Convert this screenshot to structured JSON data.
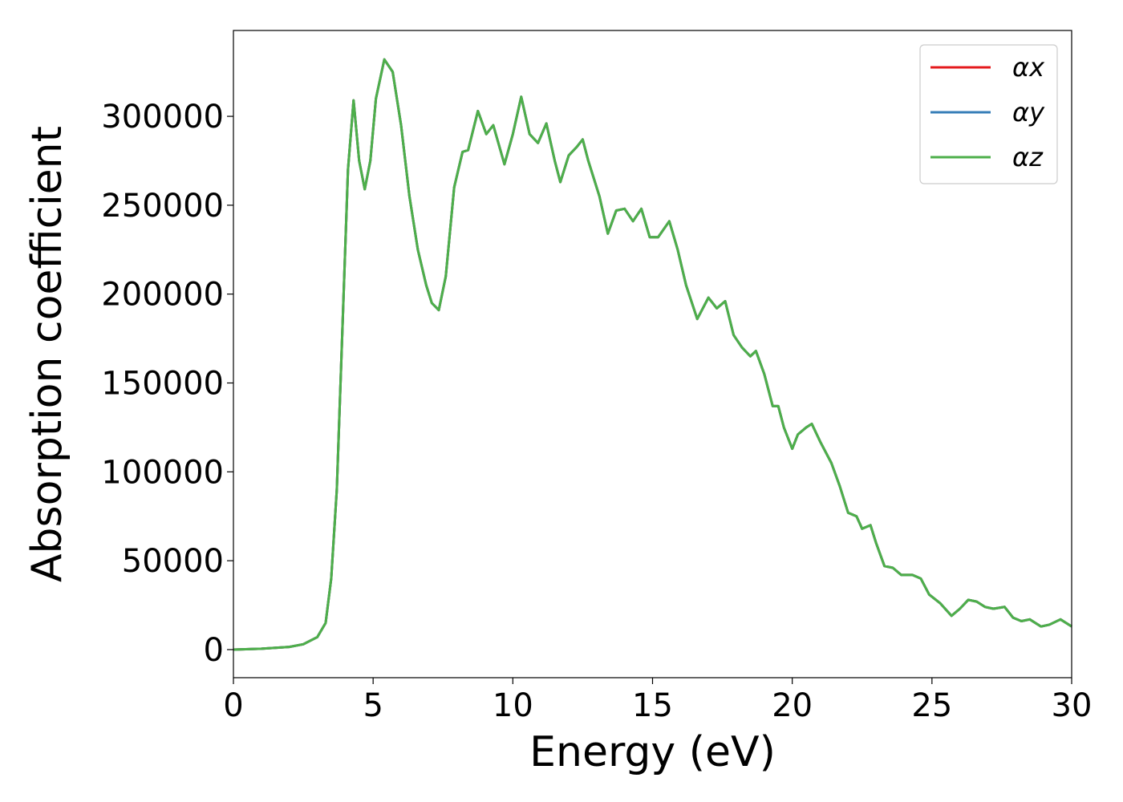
{
  "chart_data": {
    "type": "line",
    "xlabel": "Energy (eV)",
    "ylabel": "Absorption coefficient",
    "x": [
      0,
      1,
      2,
      2.5,
      3,
      3.3,
      3.5,
      3.7,
      3.9,
      4.1,
      4.3,
      4.5,
      4.7,
      4.9,
      5.1,
      5.4,
      5.7,
      6.0,
      6.3,
      6.6,
      6.9,
      7.1,
      7.35,
      7.6,
      7.9,
      8.2,
      8.4,
      8.75,
      9.05,
      9.3,
      9.7,
      10.0,
      10.3,
      10.6,
      10.9,
      11.2,
      11.5,
      11.7,
      12.0,
      12.3,
      12.5,
      12.7,
      12.9,
      13.1,
      13.4,
      13.7,
      14.0,
      14.3,
      14.6,
      14.9,
      15.2,
      15.6,
      15.9,
      16.2,
      16.6,
      17.0,
      17.3,
      17.6,
      17.9,
      18.2,
      18.5,
      18.7,
      19.0,
      19.3,
      19.5,
      19.7,
      20.0,
      20.2,
      20.5,
      20.7,
      21.0,
      21.4,
      21.7,
      22.0,
      22.3,
      22.5,
      22.8,
      23.0,
      23.3,
      23.6,
      23.9,
      24.3,
      24.6,
      24.9,
      25.3,
      25.7,
      26.0,
      26.3,
      26.6,
      26.9,
      27.2,
      27.6,
      27.9,
      28.2,
      28.5,
      28.9,
      29.2,
      29.6,
      30
    ],
    "series": [
      {
        "name": "αx",
        "color": "#e41a1c",
        "values": [
          0,
          500,
          1500,
          3000,
          7000,
          15000,
          40000,
          90000,
          180000,
          270000,
          309000,
          275000,
          259000,
          275000,
          310000,
          332000,
          325000,
          295000,
          255000,
          225000,
          205000,
          195000,
          191000,
          210000,
          260000,
          280000,
          281000,
          303000,
          290000,
          295000,
          273000,
          290000,
          311000,
          290000,
          285000,
          296000,
          275000,
          263000,
          278000,
          283000,
          287000,
          275000,
          265000,
          255000,
          234000,
          247000,
          248000,
          241000,
          248000,
          232000,
          232000,
          241000,
          225000,
          205000,
          186000,
          198000,
          192000,
          196000,
          177000,
          170000,
          165000,
          168000,
          155000,
          137000,
          137000,
          125000,
          113000,
          121000,
          125000,
          127000,
          117000,
          105000,
          92000,
          77000,
          75000,
          68000,
          70000,
          60000,
          47000,
          46000,
          42000,
          42000,
          40000,
          31000,
          26000,
          19000,
          23000,
          28000,
          27000,
          24000,
          23000,
          24000,
          18000,
          16000,
          17000,
          13000,
          14000,
          17000,
          13000
        ]
      },
      {
        "name": "αy",
        "color": "#377eb8",
        "values": [
          0,
          500,
          1500,
          3000,
          7000,
          15000,
          40000,
          90000,
          180000,
          270000,
          309000,
          275000,
          259000,
          275000,
          310000,
          332000,
          325000,
          295000,
          255000,
          225000,
          205000,
          195000,
          191000,
          210000,
          260000,
          280000,
          281000,
          303000,
          290000,
          295000,
          273000,
          290000,
          311000,
          290000,
          285000,
          296000,
          275000,
          263000,
          278000,
          283000,
          287000,
          275000,
          265000,
          255000,
          234000,
          247000,
          248000,
          241000,
          248000,
          232000,
          232000,
          241000,
          225000,
          205000,
          186000,
          198000,
          192000,
          196000,
          177000,
          170000,
          165000,
          168000,
          155000,
          137000,
          137000,
          125000,
          113000,
          121000,
          125000,
          127000,
          117000,
          105000,
          92000,
          77000,
          75000,
          68000,
          70000,
          60000,
          47000,
          46000,
          42000,
          42000,
          40000,
          31000,
          26000,
          19000,
          23000,
          28000,
          27000,
          24000,
          23000,
          24000,
          18000,
          16000,
          17000,
          13000,
          14000,
          17000,
          13000
        ]
      },
      {
        "name": "αz",
        "color": "#4daf4a",
        "values": [
          0,
          500,
          1500,
          3000,
          7000,
          15000,
          40000,
          90000,
          180000,
          270000,
          309000,
          275000,
          259000,
          275000,
          310000,
          332000,
          325000,
          295000,
          255000,
          225000,
          205000,
          195000,
          191000,
          210000,
          260000,
          280000,
          281000,
          303000,
          290000,
          295000,
          273000,
          290000,
          311000,
          290000,
          285000,
          296000,
          275000,
          263000,
          278000,
          283000,
          287000,
          275000,
          265000,
          255000,
          234000,
          247000,
          248000,
          241000,
          248000,
          232000,
          232000,
          241000,
          225000,
          205000,
          186000,
          198000,
          192000,
          196000,
          177000,
          170000,
          165000,
          168000,
          155000,
          137000,
          137000,
          125000,
          113000,
          121000,
          125000,
          127000,
          117000,
          105000,
          92000,
          77000,
          75000,
          68000,
          70000,
          60000,
          47000,
          46000,
          42000,
          42000,
          40000,
          31000,
          26000,
          19000,
          23000,
          28000,
          27000,
          24000,
          23000,
          24000,
          18000,
          16000,
          17000,
          13000,
          14000,
          17000,
          13000
        ]
      }
    ],
    "xlim": [
      0,
      30
    ],
    "xticks": [
      0,
      5,
      10,
      15,
      20,
      25,
      30
    ],
    "ylim": [
      -15800,
      348300
    ],
    "yticks": [
      0,
      50000,
      100000,
      150000,
      200000,
      250000,
      300000
    ],
    "grid": false,
    "legend": "upper right"
  }
}
